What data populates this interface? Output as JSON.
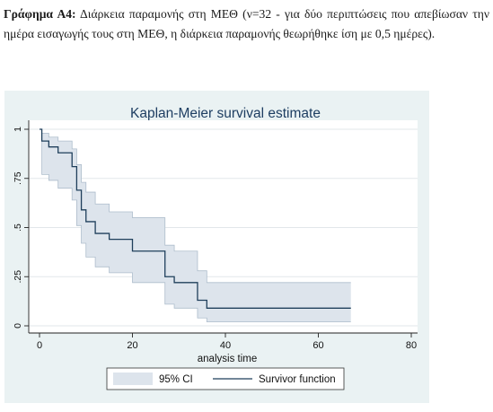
{
  "caption": {
    "label": "Γράφημα Α4:",
    "text": "Διάρκεια παραμονής στη ΜΕΘ (ν=32 - για δύο περιπτώσεις που απεβίωσαν την ημέρα εισαγωγής τους στη ΜΕΘ, η διάρκεια παραμονής θεωρήθηκε ίση με 0,5 ημέρες)."
  },
  "chart_data": {
    "type": "line",
    "title": "Kaplan-Meier survival estimate",
    "xlabel": "analysis time",
    "ylabel": "",
    "xlim": [
      0,
      80
    ],
    "ylim": [
      0,
      1
    ],
    "x_ticks": [
      0,
      20,
      40,
      60,
      80
    ],
    "y_ticks": [
      0,
      0.25,
      0.5,
      0.75,
      1
    ],
    "y_tick_labels": [
      "0",
      ".25",
      ".5",
      ".75",
      "1"
    ],
    "grid": true,
    "legend_position": "bottom",
    "series": [
      {
        "name": "Survivor function",
        "kind": "step",
        "color": "#1f3f5b",
        "x": [
          0,
          0.5,
          2,
          4,
          7,
          8,
          9,
          10,
          12,
          15,
          20,
          26,
          27,
          29,
          30,
          34,
          36,
          67
        ],
        "y": [
          1.0,
          0.94,
          0.91,
          0.88,
          0.81,
          0.69,
          0.59,
          0.53,
          0.47,
          0.44,
          0.38,
          0.38,
          0.25,
          0.22,
          0.22,
          0.13,
          0.09,
          0.09
        ]
      },
      {
        "name": "95% CI",
        "kind": "band",
        "color": "#dde4ec",
        "x": [
          0,
          0.5,
          2,
          4,
          7,
          8,
          9,
          10,
          12,
          15,
          20,
          26,
          27,
          29,
          30,
          34,
          36,
          67
        ],
        "upper": [
          1.0,
          0.98,
          0.96,
          0.94,
          0.9,
          0.82,
          0.73,
          0.68,
          0.62,
          0.58,
          0.55,
          0.55,
          0.41,
          0.38,
          0.38,
          0.28,
          0.22,
          0.22
        ],
        "lower": [
          1.0,
          0.77,
          0.74,
          0.7,
          0.64,
          0.51,
          0.42,
          0.35,
          0.3,
          0.27,
          0.22,
          0.22,
          0.11,
          0.09,
          0.09,
          0.04,
          0.02,
          0.02
        ]
      }
    ]
  }
}
